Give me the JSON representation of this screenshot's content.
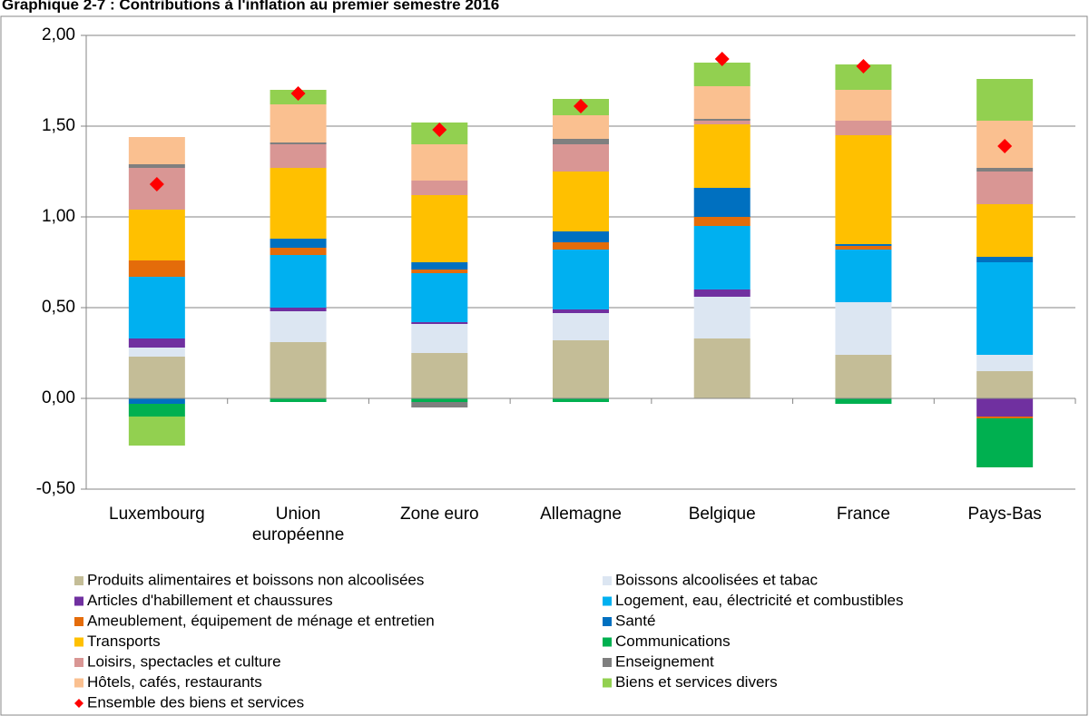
{
  "chart_data": {
    "type": "stacked-bar",
    "title": "Graphique 2-7 : Contributions à l'inflation au premier semestre 2016",
    "categories": [
      "Luxembourg",
      "Union européenne",
      "Zone euro",
      "Allemagne",
      "Belgique",
      "France",
      "Pays-Bas"
    ],
    "ylim": [
      -0.5,
      2.0
    ],
    "yticks": [
      {
        "value": -0.5,
        "label": "-0,50"
      },
      {
        "value": 0,
        "label": "0,00"
      },
      {
        "value": 0.5,
        "label": "0,50"
      },
      {
        "value": 1.0,
        "label": "1,00"
      },
      {
        "value": 1.5,
        "label": "1,50"
      },
      {
        "value": 2.0,
        "label": "2,00"
      }
    ],
    "grid": true,
    "series": [
      {
        "name": "Produits alimentaires et boissons non alcoolisées",
        "color": "#c4bd97",
        "values": [
          0.23,
          0.31,
          0.25,
          0.32,
          0.33,
          0.24,
          0.15
        ]
      },
      {
        "name": "Boissons alcoolisées et tabac",
        "color": "#dce6f2",
        "values": [
          0.05,
          0.17,
          0.16,
          0.15,
          0.23,
          0.29,
          0.09
        ]
      },
      {
        "name": "Articles d'habillement et chaussures",
        "color": "#7030a0",
        "values": [
          0.05,
          0.02,
          0.01,
          0.02,
          0.04,
          0.0,
          -0.1
        ]
      },
      {
        "name": "Logement, eau, électricité et combustibles",
        "color": "#00b0f0",
        "values": [
          0.34,
          0.29,
          0.27,
          0.33,
          0.35,
          0.29,
          0.51
        ]
      },
      {
        "name": "Ameublement, équipement de ménage et entretien",
        "color": "#e46c0a",
        "values": [
          0.09,
          0.04,
          0.02,
          0.04,
          0.05,
          0.02,
          -0.01
        ]
      },
      {
        "name": "Santé",
        "color": "#0070c0",
        "values": [
          -0.03,
          0.05,
          0.04,
          0.06,
          0.16,
          0.01,
          0.03
        ]
      },
      {
        "name": "Transports",
        "color": "#ffc000",
        "values": [
          0.28,
          0.39,
          0.37,
          0.33,
          0.35,
          0.6,
          0.29
        ]
      },
      {
        "name": "Communications",
        "color": "#00b050",
        "values": [
          -0.07,
          -0.02,
          -0.02,
          -0.02,
          0.0,
          -0.03,
          -0.27
        ]
      },
      {
        "name": "Loisirs, spectacles et culture",
        "color": "#d99694",
        "values": [
          0.23,
          0.13,
          0.08,
          0.15,
          0.02,
          0.08,
          0.18
        ]
      },
      {
        "name": "Enseignement",
        "color": "#7f7f7f",
        "values": [
          0.02,
          0.01,
          -0.03,
          0.03,
          0.01,
          0.0,
          0.02
        ]
      },
      {
        "name": "Hôtels, cafés, restaurants",
        "color": "#fac090",
        "values": [
          0.15,
          0.21,
          0.2,
          0.13,
          0.18,
          0.17,
          0.26
        ]
      },
      {
        "name": "Biens et services divers",
        "color": "#92d050",
        "values": [
          -0.16,
          0.08,
          0.12,
          0.09,
          0.13,
          0.14,
          0.23
        ]
      },
      {
        "name": "Ensemble des biens et services",
        "color": "#ff0000",
        "type": "marker",
        "values": [
          1.18,
          1.68,
          1.48,
          1.61,
          1.87,
          1.83,
          1.39
        ]
      }
    ]
  }
}
